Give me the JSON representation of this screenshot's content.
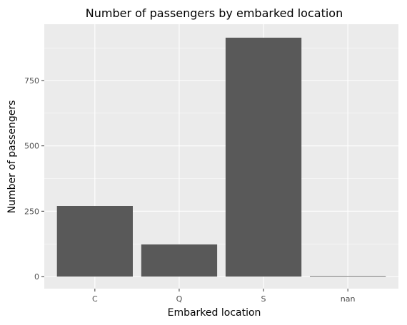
{
  "chart_data": {
    "type": "bar",
    "title": "Number of passengers by embarked location",
    "xlabel": "Embarked location",
    "ylabel": "Number of passengers",
    "categories": [
      "C",
      "Q",
      "S",
      "nan"
    ],
    "values": [
      270,
      123,
      914,
      2
    ],
    "ylim": [
      0,
      960
    ],
    "yticks": [
      0,
      250,
      500,
      750
    ],
    "grid": true,
    "colors": {
      "panel": "#ebebeb",
      "grid": "#ffffff",
      "bar": "#595959",
      "tick": "#333333",
      "tick_label": "#4d4d4d"
    }
  }
}
